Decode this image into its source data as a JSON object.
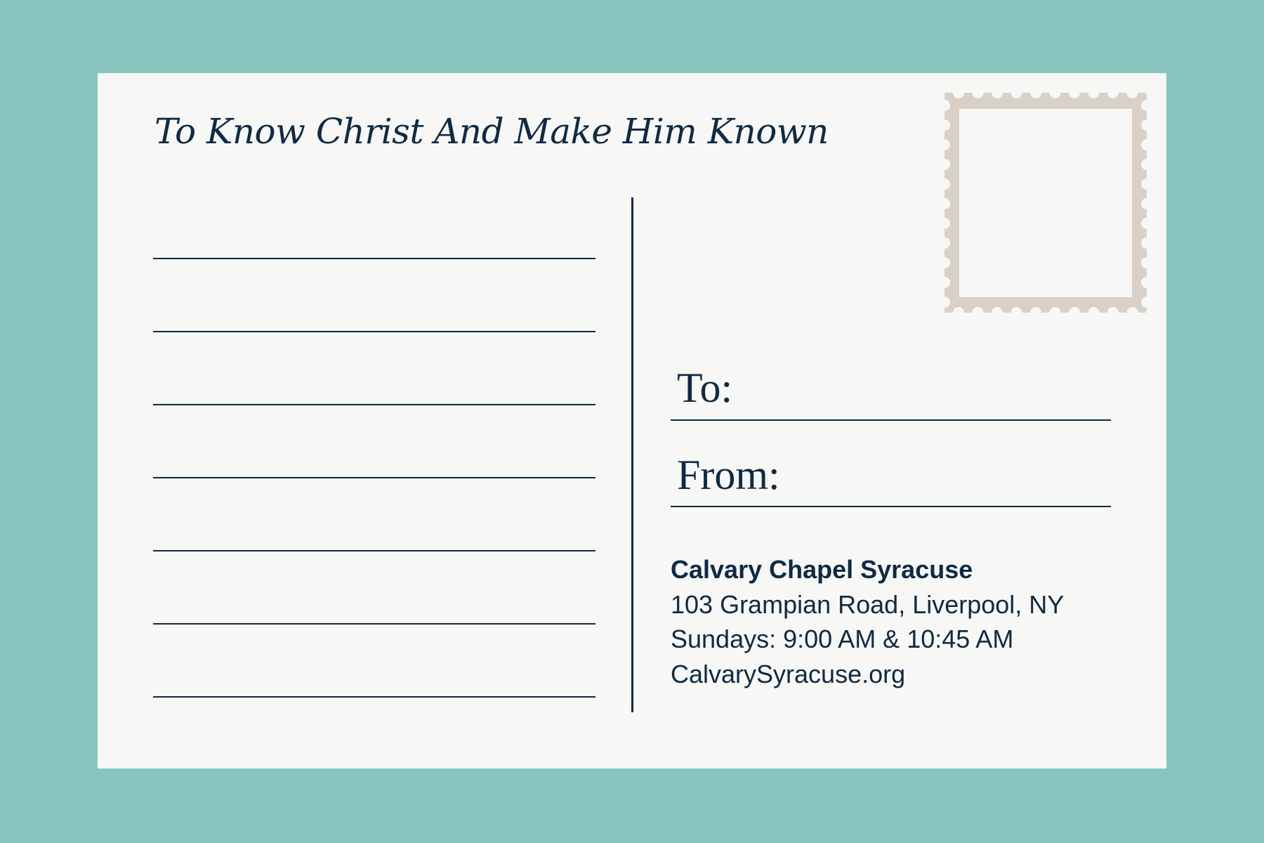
{
  "colors": {
    "background": "#88c5bf",
    "card": "#f7f7f5",
    "ink": "#0f2a44",
    "stamp": "#d9d1c7"
  },
  "title": "To Know Christ And Make Him Known",
  "message_lines": 7,
  "address": {
    "to_label": "To:",
    "from_label": "From:"
  },
  "sender": {
    "name": "Calvary Chapel Syracuse",
    "street": "103 Grampian Road, Liverpool, NY",
    "hours": "Sundays: 9:00 AM & 10:45 AM",
    "website": "CalvarySyracuse.org"
  },
  "stamp_icon": "postage-stamp-icon"
}
